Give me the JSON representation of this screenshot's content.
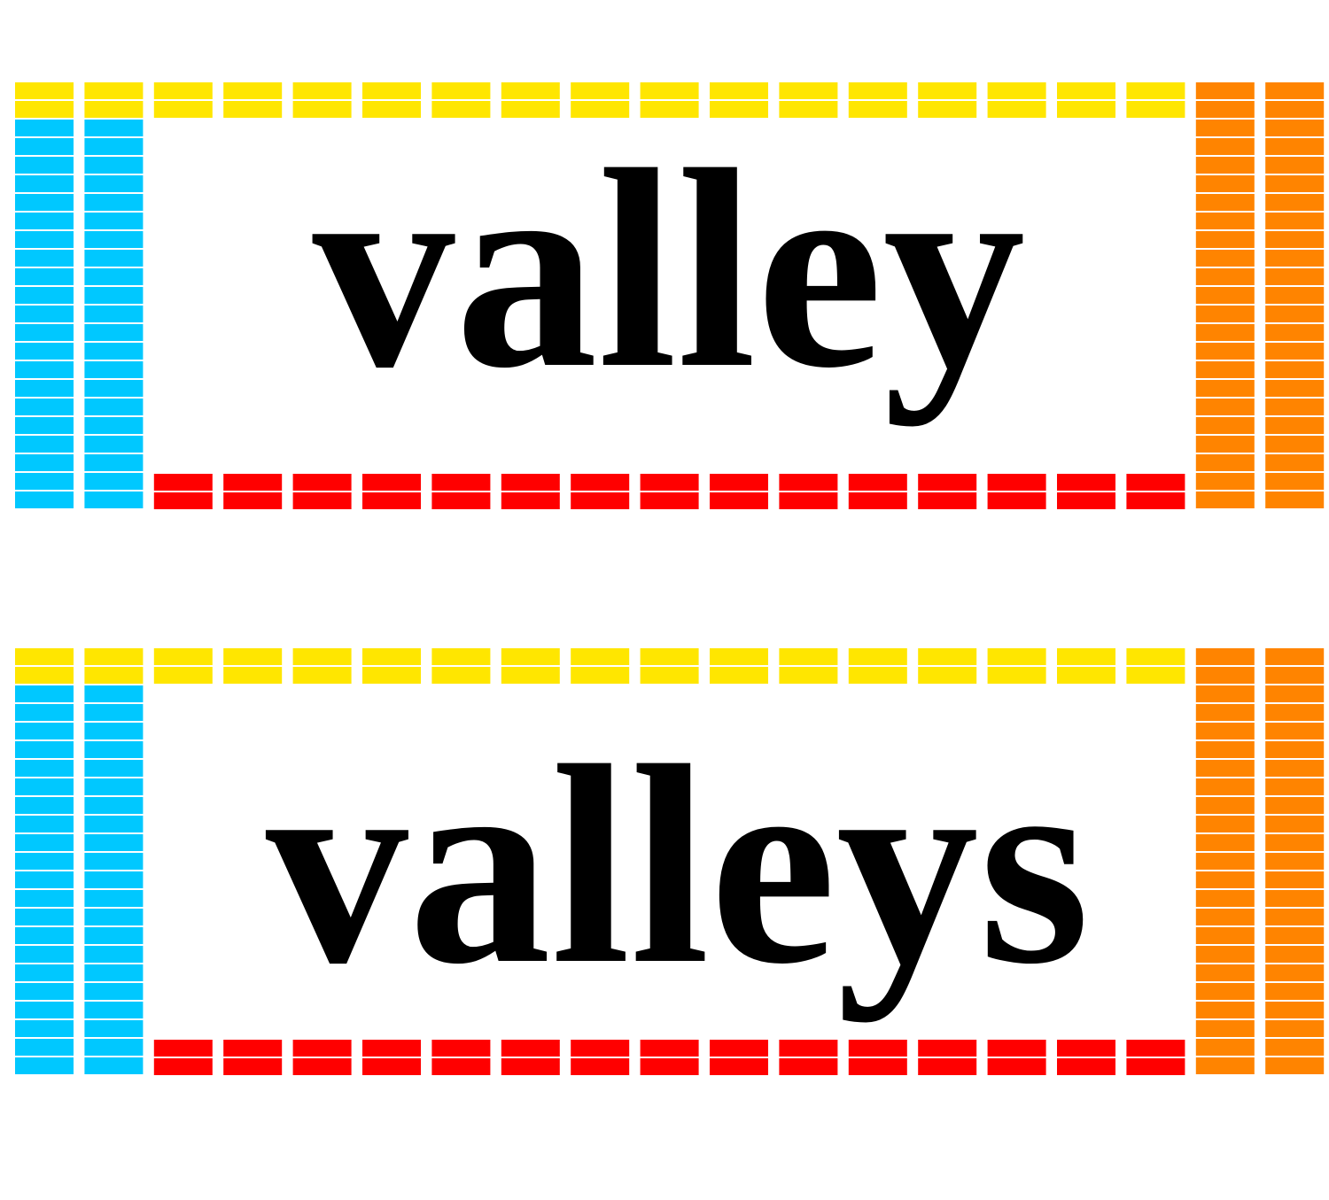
{
  "cards": [
    {
      "word": "valley"
    },
    {
      "word": "valleys"
    }
  ]
}
